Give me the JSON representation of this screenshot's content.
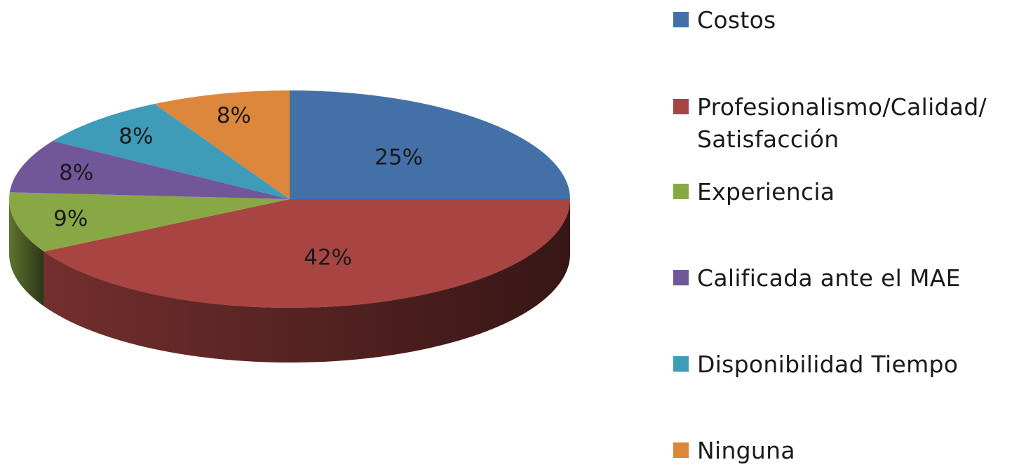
{
  "chart_data": {
    "type": "pie",
    "style": "3d",
    "legend_position": "right",
    "start_angle": "12 o'clock, clockwise",
    "slices": [
      {
        "label": "Costos",
        "value": 25,
        "display": "25%",
        "color": "#4470a8"
      },
      {
        "label": "Profesionalismo/Calidad/ Satisfacción",
        "value": 42,
        "display": "42%",
        "color": "#a84442"
      },
      {
        "label": "Experiencia",
        "value": 9,
        "display": "9%",
        "color": "#88a846"
      },
      {
        "label": "Calificada ante el MAE",
        "value": 8,
        "display": "8%",
        "color": "#71579a"
      },
      {
        "label": "Disponibilidad Tiempo",
        "value": 8,
        "display": "8%",
        "color": "#3e9cb8"
      },
      {
        "label": "Ninguna",
        "value": 8,
        "display": "8%",
        "color": "#dc873c"
      }
    ]
  }
}
